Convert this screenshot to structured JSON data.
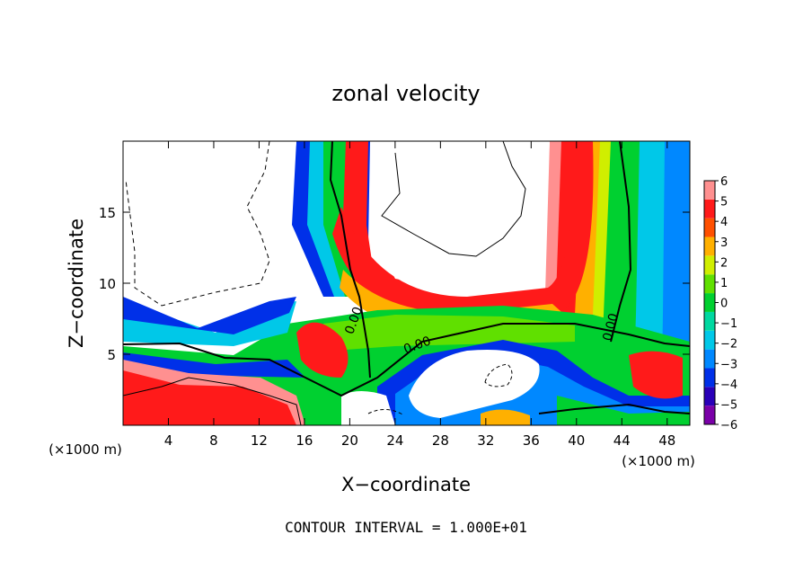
{
  "chart_data": {
    "type": "heatmap",
    "title": "zonal velocity",
    "xlabel": "X−coordinate",
    "ylabel": "Z−coordinate",
    "x_unit_label": "(×1000 m)",
    "y_unit_label": "(×1000 m)",
    "footer": "CONTOUR INTERVAL = 1.000E+01",
    "xlim": [
      0,
      50
    ],
    "ylim": [
      0,
      20
    ],
    "x_ticks": [
      4,
      8,
      12,
      16,
      20,
      24,
      28,
      32,
      36,
      40,
      44,
      48
    ],
    "y_ticks": [
      5,
      10,
      15
    ],
    "colorbar": {
      "levels": [
        -6,
        -5,
        -4,
        -3,
        -2,
        -1,
        0,
        1,
        2,
        3,
        4,
        5,
        6
      ],
      "tick_labels": [
        "−6",
        "−5",
        "−4",
        "−3",
        "−2",
        "−1",
        "0",
        "1",
        "2",
        "3",
        "4",
        "5",
        "6"
      ],
      "colors": [
        "#7a00a8",
        "#2a00b8",
        "#0030e8",
        "#0088ff",
        "#00c8e8",
        "#00d8a0",
        "#00d030",
        "#60e000",
        "#d0ee00",
        "#ffb000",
        "#ff5000",
        "#ff1a1a",
        "#ff9090"
      ]
    },
    "contour_labels": [
      "0.00",
      "0.00",
      "0.00"
    ],
    "grid": false,
    "legend": "colorbar-right"
  }
}
